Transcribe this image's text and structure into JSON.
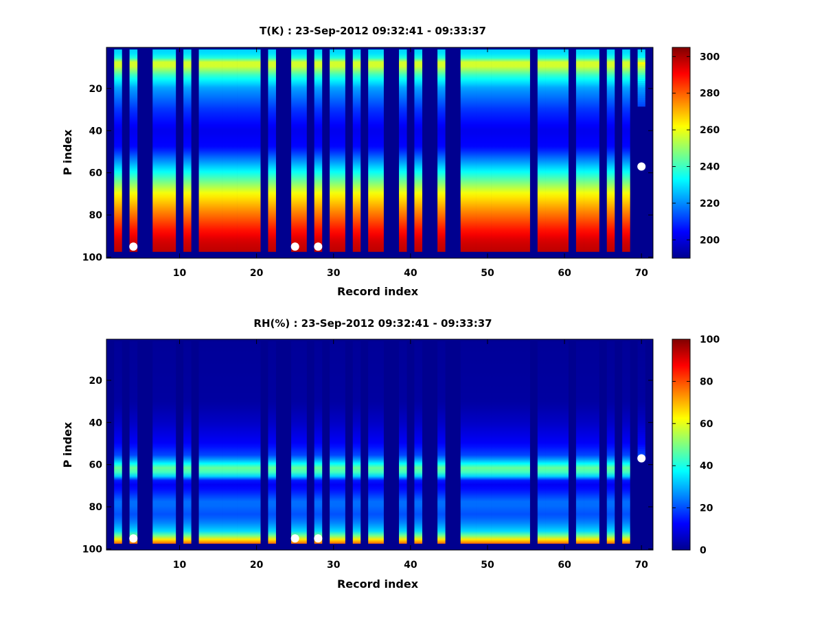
{
  "colormap": [
    "#00008f",
    "#0000ff",
    "#0080ff",
    "#00ffff",
    "#80ff80",
    "#ffff00",
    "#ff8000",
    "#ff0000",
    "#800000"
  ],
  "background_color": "#00008f",
  "marker_color": "#ffffff",
  "chart_data": [
    {
      "type": "heatmap",
      "title": "T(K) : 23-Sep-2012 09:32:41 - 09:33:37",
      "xlabel": "Record index",
      "ylabel": "P index",
      "xlim": [
        0.5,
        71.5
      ],
      "ylim": [
        0.5,
        100.5
      ],
      "y_reversed": true,
      "xticks": [
        10,
        20,
        30,
        40,
        50,
        60,
        70
      ],
      "yticks": [
        20,
        40,
        60,
        80,
        100
      ],
      "colorbar": {
        "min": 190,
        "max": 305,
        "ticks": [
          200,
          220,
          240,
          260,
          280,
          300
        ]
      },
      "valid_rows": [
        2,
        97
      ],
      "valid_columns": [
        2,
        4,
        7,
        8,
        9,
        11,
        13,
        14,
        15,
        16,
        17,
        18,
        19,
        20,
        22,
        25,
        26,
        28,
        30,
        31,
        33,
        35,
        36,
        39,
        41,
        44,
        47,
        48,
        49,
        50,
        51,
        52,
        53,
        54,
        55,
        57,
        58,
        59,
        60,
        62,
        63,
        64,
        66,
        68,
        70
      ],
      "partial_columns": [
        {
          "column": 70,
          "rows": [
            2,
            28
          ]
        }
      ],
      "profile": [
        {
          "p": 2,
          "value": 228
        },
        {
          "p": 5,
          "value": 232
        },
        {
          "p": 8,
          "value": 262
        },
        {
          "p": 10,
          "value": 255
        },
        {
          "p": 14,
          "value": 238
        },
        {
          "p": 20,
          "value": 222
        },
        {
          "p": 30,
          "value": 210
        },
        {
          "p": 40,
          "value": 202
        },
        {
          "p": 48,
          "value": 205
        },
        {
          "p": 55,
          "value": 222
        },
        {
          "p": 62,
          "value": 240
        },
        {
          "p": 70,
          "value": 262
        },
        {
          "p": 78,
          "value": 275
        },
        {
          "p": 86,
          "value": 287
        },
        {
          "p": 92,
          "value": 295
        },
        {
          "p": 97,
          "value": 298
        }
      ],
      "markers": [
        {
          "x": 4,
          "y": 95
        },
        {
          "x": 25,
          "y": 95
        },
        {
          "x": 28,
          "y": 95
        },
        {
          "x": 70,
          "y": 57
        }
      ]
    },
    {
      "type": "heatmap",
      "title": "RH(%) : 23-Sep-2012 09:32:41 - 09:33:37",
      "xlabel": "Record index",
      "ylabel": "P index",
      "xlim": [
        0.5,
        71.5
      ],
      "ylim": [
        0.5,
        100.5
      ],
      "y_reversed": true,
      "xticks": [
        10,
        20,
        30,
        40,
        50,
        60,
        70
      ],
      "yticks": [
        20,
        40,
        60,
        80,
        100
      ],
      "colorbar": {
        "min": 0,
        "max": 100,
        "ticks": [
          0,
          20,
          40,
          60,
          80,
          100
        ]
      },
      "valid_rows": [
        2,
        97
      ],
      "valid_columns": [
        2,
        4,
        7,
        8,
        9,
        11,
        13,
        14,
        15,
        16,
        17,
        18,
        19,
        20,
        22,
        25,
        26,
        28,
        30,
        31,
        33,
        35,
        36,
        39,
        41,
        44,
        47,
        48,
        49,
        50,
        51,
        52,
        53,
        54,
        55,
        57,
        58,
        59,
        60,
        62,
        63,
        64,
        66,
        68,
        70
      ],
      "partial_columns": [
        {
          "column": 70,
          "rows": [
            2,
            57
          ]
        }
      ],
      "profile": [
        {
          "p": 2,
          "value": 1
        },
        {
          "p": 30,
          "value": 2
        },
        {
          "p": 40,
          "value": 6
        },
        {
          "p": 50,
          "value": 12
        },
        {
          "p": 56,
          "value": 20
        },
        {
          "p": 59,
          "value": 35
        },
        {
          "p": 62,
          "value": 50
        },
        {
          "p": 65,
          "value": 38
        },
        {
          "p": 68,
          "value": 10
        },
        {
          "p": 72,
          "value": 14
        },
        {
          "p": 78,
          "value": 24
        },
        {
          "p": 84,
          "value": 20
        },
        {
          "p": 88,
          "value": 26
        },
        {
          "p": 92,
          "value": 35
        },
        {
          "p": 95,
          "value": 60
        },
        {
          "p": 97,
          "value": 78
        }
      ],
      "markers": [
        {
          "x": 4,
          "y": 95
        },
        {
          "x": 25,
          "y": 95
        },
        {
          "x": 28,
          "y": 95
        },
        {
          "x": 70,
          "y": 57
        }
      ]
    }
  ]
}
